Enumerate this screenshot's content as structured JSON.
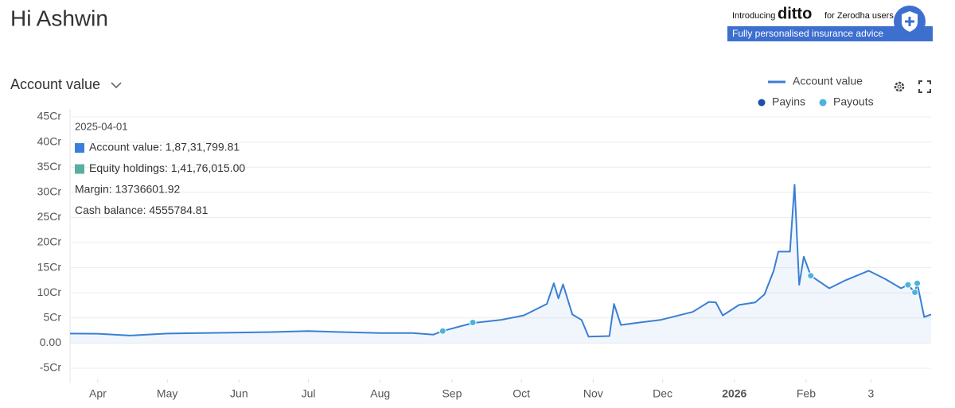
{
  "header": {
    "greeting": "Hi Ashwin",
    "banner": {
      "intro": "Introducing",
      "brand": "ditto",
      "audience": "for Zerodha users",
      "tagline": "Fully personalised insurance advice"
    }
  },
  "selector": {
    "label": "Account value"
  },
  "tooltip": {
    "date": "2025-04-01",
    "lines": [
      "Account value: 1,87,31,799.81",
      "Equity holdings: 1,41,76,015.00",
      "Margin: 13736601.92",
      "Cash balance: 4555784.81"
    ],
    "colors": [
      "#3a7fd9",
      "#5aaea0",
      null,
      null
    ]
  },
  "chart_data": {
    "type": "line",
    "series": [
      {
        "name": "Account value",
        "color": "#3a7fd5",
        "kind": "line",
        "x": [
          "2025-03-20",
          "2025-04-01",
          "2025-04-15",
          "2025-05-01",
          "2025-05-15",
          "2025-06-01",
          "2025-06-15",
          "2025-07-01",
          "2025-07-15",
          "2025-08-01",
          "2025-08-15",
          "2025-08-24",
          "2025-08-28",
          "2025-09-10",
          "2025-09-22",
          "2025-10-02",
          "2025-10-12",
          "2025-10-15",
          "2025-10-17",
          "2025-10-19",
          "2025-10-23",
          "2025-10-27",
          "2025-10-30",
          "2025-11-08",
          "2025-11-10",
          "2025-11-13",
          "2025-11-21",
          "2025-11-30",
          "2025-12-14",
          "2025-12-21",
          "2025-12-24",
          "2025-12-27",
          "2026-01-03",
          "2026-01-10",
          "2026-01-14",
          "2026-01-18",
          "2026-01-20",
          "2026-01-25",
          "2026-01-27",
          "2026-01-29",
          "2026-01-31",
          "2026-02-03",
          "2026-02-11",
          "2026-02-18",
          "2026-02-28",
          "2026-03-07",
          "2026-03-14",
          "2026-03-17",
          "2026-03-20",
          "2026-03-21",
          "2026-03-24",
          "2026-03-27"
        ],
        "values": [
          1.9,
          1.87,
          1.5,
          1.9,
          2.0,
          2.1,
          2.2,
          2.4,
          2.2,
          2.0,
          2.0,
          1.7,
          2.4,
          4.0,
          4.6,
          5.5,
          7.8,
          11.9,
          8.9,
          11.7,
          5.7,
          4.6,
          1.3,
          1.4,
          7.8,
          3.6,
          4.1,
          4.6,
          6.2,
          8.2,
          8.1,
          5.5,
          7.6,
          8.1,
          9.7,
          14.4,
          18.2,
          18.2,
          31.5,
          11.6,
          17.2,
          13.4,
          10.9,
          12.5,
          14.4,
          12.8,
          10.9,
          11.6,
          10.1,
          11.9,
          5.2,
          5.7
        ]
      },
      {
        "name": "Payins",
        "color": "#1f4fa8",
        "kind": "dot",
        "x": [],
        "values": []
      },
      {
        "name": "Payouts",
        "color": "#4bb3dc",
        "kind": "dot",
        "x": [
          "2025-08-28",
          "2025-09-10",
          "2026-02-03",
          "2026-03-17",
          "2026-03-20",
          "2026-03-21"
        ],
        "values": [
          2.4,
          4.1,
          13.4,
          11.6,
          10.1,
          11.9
        ]
      }
    ],
    "xlim": [
      "2025-03-20",
      "2026-03-27"
    ],
    "xticks": [
      {
        "value": "2025-04-01",
        "label": "Apr"
      },
      {
        "value": "2025-05-01",
        "label": "May"
      },
      {
        "value": "2025-06-01",
        "label": "Jun"
      },
      {
        "value": "2025-07-01",
        "label": "Jul"
      },
      {
        "value": "2025-08-01",
        "label": "Aug"
      },
      {
        "value": "2025-09-01",
        "label": "Sep"
      },
      {
        "value": "2025-10-01",
        "label": "Oct"
      },
      {
        "value": "2025-11-01",
        "label": "Nov"
      },
      {
        "value": "2025-12-01",
        "label": "Dec"
      },
      {
        "value": "2026-01-01",
        "label": "2026",
        "bold": true
      },
      {
        "value": "2026-02-01",
        "label": "Feb"
      },
      {
        "value": "2026-03-01",
        "label": "3"
      }
    ],
    "ylim": [
      -5,
      45
    ],
    "yticks": [
      {
        "value": -5,
        "label": "-5Cr"
      },
      {
        "value": 0,
        "label": "0.00"
      },
      {
        "value": 5,
        "label": "5Cr"
      },
      {
        "value": 10,
        "label": "10Cr"
      },
      {
        "value": 15,
        "label": "15Cr"
      },
      {
        "value": 20,
        "label": "20Cr"
      },
      {
        "value": 25,
        "label": "25Cr"
      },
      {
        "value": 30,
        "label": "30Cr"
      },
      {
        "value": 35,
        "label": "35Cr"
      },
      {
        "value": 40,
        "label": "40Cr"
      },
      {
        "value": 45,
        "label": "45Cr"
      }
    ],
    "grid": true
  }
}
